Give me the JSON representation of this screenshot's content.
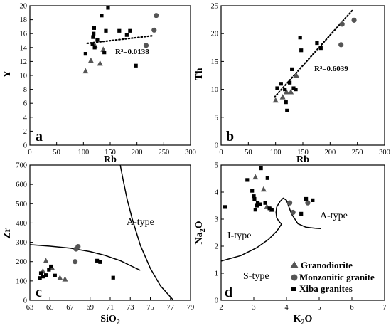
{
  "chart_data": [
    {
      "panel": "a",
      "type": "scatter",
      "xlabel": "Rb",
      "ylabel": "Y",
      "xlim": [
        0,
        300
      ],
      "ylim": [
        0,
        20
      ],
      "xticks": [
        0,
        50,
        100,
        150,
        200,
        250,
        300
      ],
      "yticks": [
        0,
        2,
        4,
        6,
        8,
        10,
        12,
        14,
        16,
        18,
        20
      ],
      "annotation": "R²=0.0138",
      "trendline": {
        "style": "dotted",
        "x": [
          107,
          230
        ],
        "y": [
          14.6,
          15.7
        ]
      },
      "series": [
        {
          "marker": "triangle",
          "points": [
            [
              104,
              10.6
            ],
            [
              114,
              12.1
            ],
            [
              122,
              14.2
            ],
            [
              131,
              11.7
            ],
            [
              137,
              13.7
            ]
          ]
        },
        {
          "marker": "circle",
          "points": [
            [
              217,
              14.3
            ],
            [
              232,
              16.5
            ],
            [
              236,
              18.6
            ]
          ]
        },
        {
          "marker": "square",
          "points": [
            [
              104,
              13.1
            ],
            [
              117,
              14.5
            ],
            [
              118,
              15.5
            ],
            [
              119,
              16.0
            ],
            [
              120,
              16.8
            ],
            [
              121,
              14.0
            ],
            [
              126,
              15.1
            ],
            [
              134,
              18.6
            ],
            [
              139,
              13.3
            ],
            [
              142,
              16.4
            ],
            [
              146,
              19.7
            ],
            [
              167,
              16.4
            ],
            [
              181,
              15.8
            ],
            [
              187,
              16.4
            ],
            [
              198,
              11.4
            ]
          ]
        }
      ]
    },
    {
      "panel": "b",
      "type": "scatter",
      "xlabel": "Rb",
      "ylabel": "Th",
      "xlim": [
        0,
        300
      ],
      "ylim": [
        0,
        25
      ],
      "xticks": [
        0,
        50,
        100,
        150,
        200,
        250,
        300
      ],
      "yticks": [
        0,
        5,
        10,
        15,
        20,
        25
      ],
      "annotation": "R²=0.6039",
      "trendline": {
        "style": "dotted",
        "x": [
          98,
          242
        ],
        "y": [
          8.6,
          24.3
        ]
      },
      "series": [
        {
          "marker": "triangle",
          "points": [
            [
              100,
              8.0
            ],
            [
              113,
              8.6
            ],
            [
              120,
              9.5
            ],
            [
              128,
              9.5
            ],
            [
              138,
              12.5
            ]
          ]
        },
        {
          "marker": "circle",
          "points": [
            [
              220,
              18.0
            ],
            [
              222,
              21.7
            ],
            [
              244,
              22.4
            ]
          ]
        },
        {
          "marker": "square",
          "points": [
            [
              103,
              10.2
            ],
            [
              110,
              11.0
            ],
            [
              117,
              10.0
            ],
            [
              119,
              7.7
            ],
            [
              121,
              6.2
            ],
            [
              126,
              11.2
            ],
            [
              130,
              13.6
            ],
            [
              133,
              10.2
            ],
            [
              137,
              10.0
            ],
            [
              145,
              19.3
            ],
            [
              147,
              17.0
            ],
            [
              176,
              18.3
            ],
            [
              183,
              17.4
            ]
          ]
        }
      ]
    },
    {
      "panel": "c",
      "type": "scatter",
      "xlabel": "SiO2",
      "ylabel": "Zr",
      "xlim": [
        63,
        79
      ],
      "ylim": [
        0,
        700
      ],
      "xticks": [
        63,
        65,
        67,
        69,
        71,
        73,
        75,
        77,
        79
      ],
      "yticks": [
        0,
        100,
        200,
        300,
        400,
        500,
        600,
        700
      ],
      "region_labels": [
        "A-type"
      ],
      "boundaries": [
        {
          "x": [
            63.0,
            65.0,
            67.0,
            69.0,
            70.5,
            72.0,
            73.2,
            74.0
          ],
          "y": [
            288,
            280,
            270,
            252,
            232,
            205,
            175,
            155
          ]
        },
        {
          "x": [
            72.0,
            72.3,
            72.7,
            73.2,
            74.0,
            75.0,
            76.0,
            77.3
          ],
          "y": [
            700,
            620,
            520,
            420,
            285,
            165,
            75,
            0
          ]
        }
      ],
      "series": [
        {
          "marker": "triangle",
          "points": [
            [
              64.3,
              150
            ],
            [
              64.6,
              203
            ],
            [
              65.2,
              168
            ],
            [
              66.0,
              115
            ],
            [
              66.5,
              108
            ]
          ]
        },
        {
          "marker": "circle",
          "points": [
            [
              67.5,
              200
            ],
            [
              67.6,
              265
            ],
            [
              67.8,
              278
            ]
          ]
        },
        {
          "marker": "square",
          "points": [
            [
              64.0,
              115
            ],
            [
              64.1,
              140
            ],
            [
              64.3,
              123
            ],
            [
              64.6,
              130
            ],
            [
              64.9,
              158
            ],
            [
              65.1,
              175
            ],
            [
              65.5,
              128
            ],
            [
              69.7,
              205
            ],
            [
              70.0,
              198
            ],
            [
              71.3,
              117
            ]
          ]
        }
      ]
    },
    {
      "panel": "d",
      "type": "scatter",
      "xlabel": "K2O",
      "ylabel": "Na2O",
      "xlim": [
        2,
        7
      ],
      "ylim": [
        0,
        5
      ],
      "xticks": [
        2,
        3,
        4,
        5,
        6,
        7
      ],
      "yticks": [
        0,
        1,
        2,
        3,
        4,
        5
      ],
      "region_labels": [
        "A-type",
        "I-type",
        "S-type"
      ],
      "boundaries": [
        {
          "x": [
            3.7,
            3.8,
            3.9,
            4.0,
            4.15,
            4.35,
            4.6,
            4.9,
            5.05
          ],
          "y": [
            3.45,
            3.65,
            3.78,
            3.7,
            3.2,
            2.83,
            2.7,
            2.66,
            2.65
          ]
        },
        {
          "x": [
            3.7,
            3.68,
            3.7,
            3.78,
            3.85
          ],
          "y": [
            3.45,
            3.25,
            3.05,
            2.9,
            2.82
          ]
        },
        {
          "x": [
            2.0,
            2.6,
            3.1,
            3.45,
            3.7,
            3.85
          ],
          "y": [
            1.45,
            1.65,
            1.95,
            2.25,
            2.55,
            2.82
          ]
        }
      ],
      "series": [
        {
          "name": "Granodiorite",
          "marker": "triangle",
          "points": [
            [
              3.05,
              4.55
            ],
            [
              3.3,
              4.1
            ],
            [
              3.4,
              3.45
            ],
            [
              3.55,
              3.35
            ]
          ]
        },
        {
          "name": "Monzonitic granite",
          "marker": "circle",
          "points": [
            [
              4.1,
              3.6
            ],
            [
              4.2,
              3.25
            ],
            [
              4.65,
              3.6
            ]
          ]
        },
        {
          "name": "Xiba granites",
          "marker": "square",
          "points": [
            [
              2.12,
              3.45
            ],
            [
              2.8,
              4.45
            ],
            [
              2.95,
              4.05
            ],
            [
              3.0,
              3.85
            ],
            [
              3.02,
              3.75
            ],
            [
              3.05,
              3.35
            ],
            [
              3.1,
              3.5
            ],
            [
              3.12,
              3.6
            ],
            [
              3.2,
              3.55
            ],
            [
              3.22,
              4.88
            ],
            [
              3.35,
              3.6
            ],
            [
              3.42,
              4.52
            ],
            [
              3.48,
              3.4
            ],
            [
              3.55,
              3.35
            ],
            [
              4.45,
              3.2
            ],
            [
              4.6,
              3.75
            ],
            [
              4.8,
              3.7
            ]
          ]
        }
      ]
    }
  ],
  "labels": {
    "panel_a": {
      "letter": "a",
      "xlabel": "Rb",
      "ylabel": "Y",
      "annotation": "R²=0.0138"
    },
    "panel_b": {
      "letter": "b",
      "xlabel": "Rb",
      "ylabel": "Th",
      "annotation": "R²=0.6039"
    },
    "panel_c": {
      "letter": "c",
      "ylabel": "Zr",
      "xlabel_main": "SiO",
      "xlabel_sub": "2",
      "region_a": "A-type"
    },
    "panel_d": {
      "letter": "d",
      "ylabel_main": "Na",
      "ylabel_sub": "2",
      "ylabel_end": "O",
      "xlabel_main": "K",
      "xlabel_sub": "2",
      "xlabel_end": "O",
      "region_a": "A-type",
      "region_i": "I-type",
      "region_s": "S-type"
    }
  },
  "legend": [
    {
      "marker": "triangle",
      "label": "Granodiorite"
    },
    {
      "marker": "circle",
      "label": "Monzonitic granite"
    },
    {
      "marker": "square",
      "label": "Xiba granites"
    }
  ],
  "colors": {
    "square": "#000000",
    "triangle": "#555555",
    "circle": "#555555",
    "axis": "#000000"
  }
}
